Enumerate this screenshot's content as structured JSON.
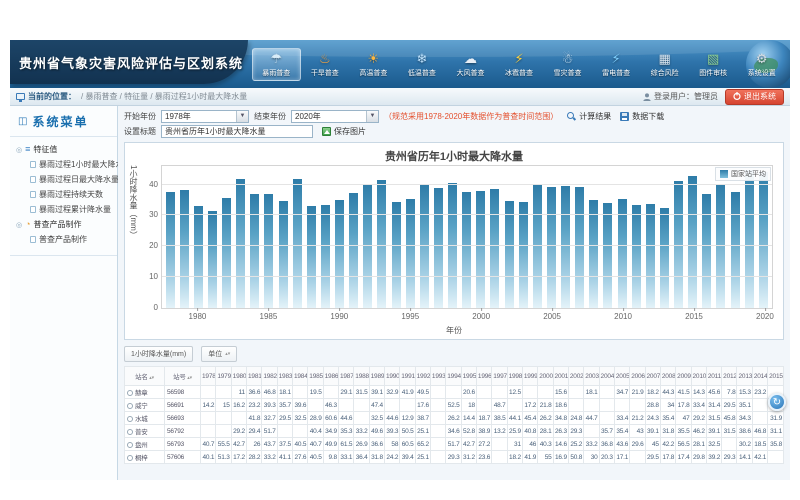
{
  "app": {
    "title": "贵州省气象灾害风险评估与区划系统"
  },
  "header": {
    "nav_items": [
      {
        "name": "rainstorm",
        "label": "暴雨普查",
        "glyph": "☂",
        "color": "#d8ecf8",
        "selected": true
      },
      {
        "name": "drought",
        "label": "干旱普查",
        "glyph": "♨",
        "color": "#f5a13d",
        "selected": false
      },
      {
        "name": "high-temp",
        "label": "高温普查",
        "glyph": "☀",
        "color": "#ffb73d",
        "selected": false
      },
      {
        "name": "low-temp",
        "label": "低温普查",
        "glyph": "❄",
        "color": "#bfe4ff",
        "selected": false
      },
      {
        "name": "wind",
        "label": "大风普查",
        "glyph": "☁",
        "color": "#e8eef5",
        "selected": false
      },
      {
        "name": "hail",
        "label": "冰雹普查",
        "glyph": "⚡",
        "color": "#ffd23d",
        "selected": false
      },
      {
        "name": "snow",
        "label": "雪灾普查",
        "glyph": "☃",
        "color": "#dceefc",
        "selected": false
      },
      {
        "name": "lightning",
        "label": "雷电普查",
        "glyph": "⚡",
        "color": "#7fd0ff",
        "selected": false
      },
      {
        "name": "comprehensive-risk",
        "label": "综合风险",
        "glyph": "▦",
        "color": "#d8e4ee",
        "selected": false
      },
      {
        "name": "map-review",
        "label": "图件审核",
        "glyph": "▧",
        "color": "#8fd08f",
        "selected": false
      },
      {
        "name": "system-settings",
        "label": "系统设置",
        "glyph": "⚙",
        "color": "#d5dde3",
        "selected": false
      }
    ]
  },
  "breadcrumb": {
    "location_label": "当前的位置：",
    "path": "/ 暴雨普查 / 特征量 / 暴雨过程1小时最大降水量",
    "user_label": "登录用户：管理员",
    "logout_label": "退出系统"
  },
  "sidebar": {
    "title": "系统菜单",
    "groups": [
      {
        "label": "特征值",
        "glyph": "≡",
        "color": "#3b82c4",
        "items": [
          "暴雨过程1小时最大降水量",
          "暴雨过程日最大降水量",
          "暴雨过程持续天数",
          "暴雨过程累计降水量"
        ]
      },
      {
        "label": "普查产品制作",
        "glyph": "◔",
        "color": "#e8a33d",
        "items": [
          "普查产品制作"
        ]
      }
    ]
  },
  "toolbar": {
    "start_year_label": "开始年份",
    "start_year_value": "1978年",
    "end_year_label": "结束年份",
    "end_year_value": "2020年",
    "note": "（规范采用1978-2020年数据作为普查时间范围）",
    "calc_label": "计算结果",
    "download_label": "数据下载",
    "title_label": "设置标题",
    "title_value": "贵州省历年1小时最大降水量",
    "save_image_label": "保存图片"
  },
  "chart_data": {
    "type": "bar",
    "title": "贵州省历年1小时最大降水量",
    "xlabel": "年份",
    "ylabel": "1小时降水量（mm）",
    "legend": [
      "国家站平均"
    ],
    "legend_position": "top-right",
    "grid": true,
    "ylim": [
      0,
      46
    ],
    "yticks": [
      0,
      10,
      20,
      30,
      40
    ],
    "xticks": [
      1980,
      1985,
      1990,
      1995,
      2000,
      2005,
      2010,
      2015,
      2020
    ],
    "categories": [
      1978,
      1979,
      1980,
      1981,
      1982,
      1983,
      1984,
      1985,
      1986,
      1987,
      1988,
      1989,
      1990,
      1991,
      1992,
      1993,
      1994,
      1995,
      1996,
      1997,
      1998,
      1999,
      2000,
      2001,
      2002,
      2003,
      2004,
      2005,
      2006,
      2007,
      2008,
      2009,
      2010,
      2011,
      2012,
      2013,
      2014,
      2015,
      2016,
      2017,
      2018,
      2019,
      2020
    ],
    "values": [
      37.5,
      38.3,
      33.2,
      31.5,
      35.8,
      41.7,
      37.0,
      36.9,
      34.8,
      41.8,
      33.2,
      33.5,
      35.0,
      37.3,
      40.3,
      41.5,
      34.2,
      35.2,
      39.9,
      39.0,
      40.6,
      37.6,
      37.8,
      38.7,
      34.6,
      34.5,
      39.8,
      39.1,
      39.6,
      39.1,
      35.0,
      34.1,
      35.4,
      33.4,
      33.8,
      32.5,
      41.1,
      42.8,
      36.8,
      40.2,
      37.6,
      44.8,
      43.9
    ],
    "bar_color_top": "#2e7ca8",
    "bar_color_bottom": "#e4f3f9"
  },
  "filters": {
    "metric_label": "1小时降水量(mm)",
    "unit_label": "单位"
  },
  "table": {
    "name_col_label": "站名",
    "id_col_label": "站号",
    "years": [
      "1978",
      "1979",
      "1980",
      "1981",
      "1982",
      "1983",
      "1984",
      "1985",
      "1986",
      "1987",
      "1988",
      "1989",
      "1990",
      "1991",
      "1992",
      "1993",
      "1994",
      "1995",
      "1996",
      "1997",
      "1998",
      "1999",
      "2000",
      "2001",
      "2002",
      "2003",
      "2004",
      "2005",
      "2006",
      "2007",
      "2008",
      "2009",
      "2010",
      "2011",
      "2012",
      "2013",
      "2014",
      "2015"
    ],
    "rows": [
      {
        "name": "赫章",
        "id": "56598",
        "values": [
          "",
          "",
          "11",
          "36.6",
          "46.8",
          "18.1",
          "",
          "19.5",
          "",
          "29.1",
          "31.5",
          "39.1",
          "32.9",
          "41.9",
          "49.5",
          "",
          "",
          "20.6",
          "",
          "",
          "12.5",
          "",
          "",
          "15.6",
          "",
          "18.1",
          "",
          "34.7",
          "21.9",
          "18.2",
          "44.3",
          "41.5",
          "14.3",
          "45.6",
          "7.8",
          "15.3",
          "23.2",
          ""
        ]
      },
      {
        "name": "威宁",
        "id": "56691",
        "values": [
          "14.2",
          "15",
          "16.2",
          "23.2",
          "39.3",
          "35.7",
          "39.6",
          "",
          "46.3",
          "",
          "",
          "47.4",
          "",
          "",
          "17.6",
          "",
          "52.5",
          "18",
          "",
          "48.7",
          "",
          "17.2",
          "21.8",
          "18.6",
          "",
          "",
          "",
          "",
          "",
          "28.8",
          "34",
          "17.8",
          "33.4",
          "31.4",
          "29.5",
          "35.1",
          "",
          ""
        ]
      },
      {
        "name": "水城",
        "id": "56693",
        "values": [
          "",
          "",
          "",
          "41.8",
          "32.7",
          "29.5",
          "32.5",
          "28.9",
          "60.6",
          "44.6",
          "",
          "32.5",
          "44.6",
          "12.9",
          "38.7",
          "",
          "26.2",
          "14.4",
          "18.7",
          "38.5",
          "44.1",
          "45.4",
          "26.2",
          "34.8",
          "24.8",
          "44.7",
          "",
          "33.4",
          "21.2",
          "24.3",
          "35.4",
          "47",
          "29.2",
          "31.5",
          "45.8",
          "34.3",
          "",
          "31.9"
        ]
      },
      {
        "name": "普安",
        "id": "56792",
        "values": [
          "",
          "",
          "29.2",
          "29.4",
          "51.7",
          "",
          "",
          "40.4",
          "34.9",
          "35.3",
          "33.2",
          "49.6",
          "39.3",
          "50.5",
          "25.1",
          "",
          "34.6",
          "52.8",
          "38.9",
          "13.2",
          "25.9",
          "40.8",
          "28.1",
          "26.3",
          "29.3",
          "",
          "35.7",
          "35.4",
          "43",
          "39.1",
          "31.8",
          "35.5",
          "46.2",
          "39.1",
          "31.5",
          "38.6",
          "46.8",
          "31.1"
        ]
      },
      {
        "name": "盘州",
        "id": "56793",
        "values": [
          "40.7",
          "55.5",
          "42.7",
          "26",
          "43.7",
          "37.5",
          "40.5",
          "40.7",
          "49.9",
          "61.5",
          "26.9",
          "36.6",
          "58",
          "60.5",
          "65.2",
          "",
          "51.7",
          "42.7",
          "27.2",
          "",
          "31",
          "46",
          "40.3",
          "14.6",
          "25.2",
          "33.2",
          "36.8",
          "43.6",
          "29.6",
          "45",
          "42.2",
          "56.5",
          "28.1",
          "32.5",
          "",
          "30.2",
          "18.5",
          "35.8"
        ]
      },
      {
        "name": "桐梓",
        "id": "57606",
        "values": [
          "40.1",
          "51.3",
          "17.2",
          "28.2",
          "33.2",
          "41.1",
          "27.6",
          "40.5",
          "9.8",
          "33.1",
          "36.4",
          "31.8",
          "24.2",
          "39.4",
          "25.1",
          "",
          "29.3",
          "31.2",
          "23.6",
          "",
          "18.2",
          "41.9",
          "55",
          "16.9",
          "50.8",
          "30",
          "20.3",
          "17.1",
          "",
          "29.5",
          "17.8",
          "17.4",
          "29.8",
          "39.2",
          "29.3",
          "14.1",
          "42.1",
          ""
        ]
      }
    ]
  },
  "float_button": {
    "icon": "refresh-icon",
    "glyph": "↻"
  }
}
